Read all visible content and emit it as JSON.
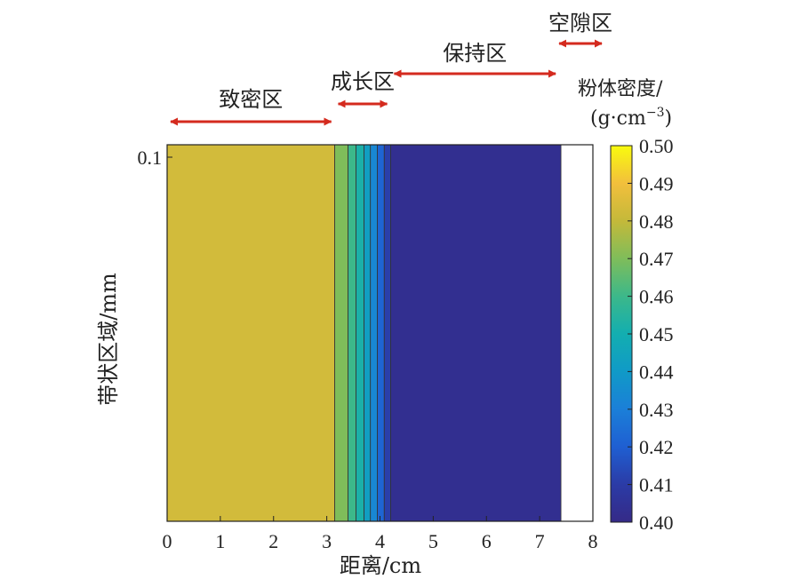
{
  "chart_data": {
    "type": "heatmap",
    "xlabel": "距离/cm",
    "ylabel": "带状区域/mm",
    "xlim": [
      0,
      8
    ],
    "xticks": [
      "0",
      "1",
      "2",
      "3",
      "4",
      "5",
      "6",
      "7",
      "8"
    ],
    "yticks": [
      "0.1"
    ],
    "colorbar": {
      "title_line1": "粉体密度/",
      "title_line2_prefix": "(g·cm",
      "title_line2_exponent": "−3",
      "title_line2_suffix": ")",
      "ticks": [
        "0.50",
        "0.49",
        "0.48",
        "0.47",
        "0.46",
        "0.45",
        "0.44",
        "0.43",
        "0.42",
        "0.41",
        "0.40"
      ],
      "range": [
        0.4,
        0.5
      ],
      "colormap": "parula"
    },
    "bands": [
      {
        "x_start": 0.0,
        "x_end": 3.15,
        "value": 0.483
      },
      {
        "x_start": 3.15,
        "x_end": 3.4,
        "value": 0.47
      },
      {
        "x_start": 3.4,
        "x_end": 3.55,
        "value": 0.46
      },
      {
        "x_start": 3.55,
        "x_end": 3.7,
        "value": 0.452
      },
      {
        "x_start": 3.7,
        "x_end": 3.82,
        "value": 0.442
      },
      {
        "x_start": 3.82,
        "x_end": 3.95,
        "value": 0.433
      },
      {
        "x_start": 3.95,
        "x_end": 4.08,
        "value": 0.422
      },
      {
        "x_start": 4.08,
        "x_end": 4.2,
        "value": 0.411
      },
      {
        "x_start": 4.2,
        "x_end": 7.4,
        "value": 0.403
      }
    ],
    "zones": [
      {
        "label": "致密区",
        "x_start": 0.0,
        "x_end": 3.15
      },
      {
        "label": "成长区",
        "x_start": 3.15,
        "x_end": 4.2
      },
      {
        "label": "保持区",
        "x_start": 4.2,
        "x_end": 7.4
      },
      {
        "label": "空隙区",
        "x_start": 7.4,
        "x_end": 8.0
      }
    ],
    "zone_arrow_color": "#d42a1e"
  }
}
